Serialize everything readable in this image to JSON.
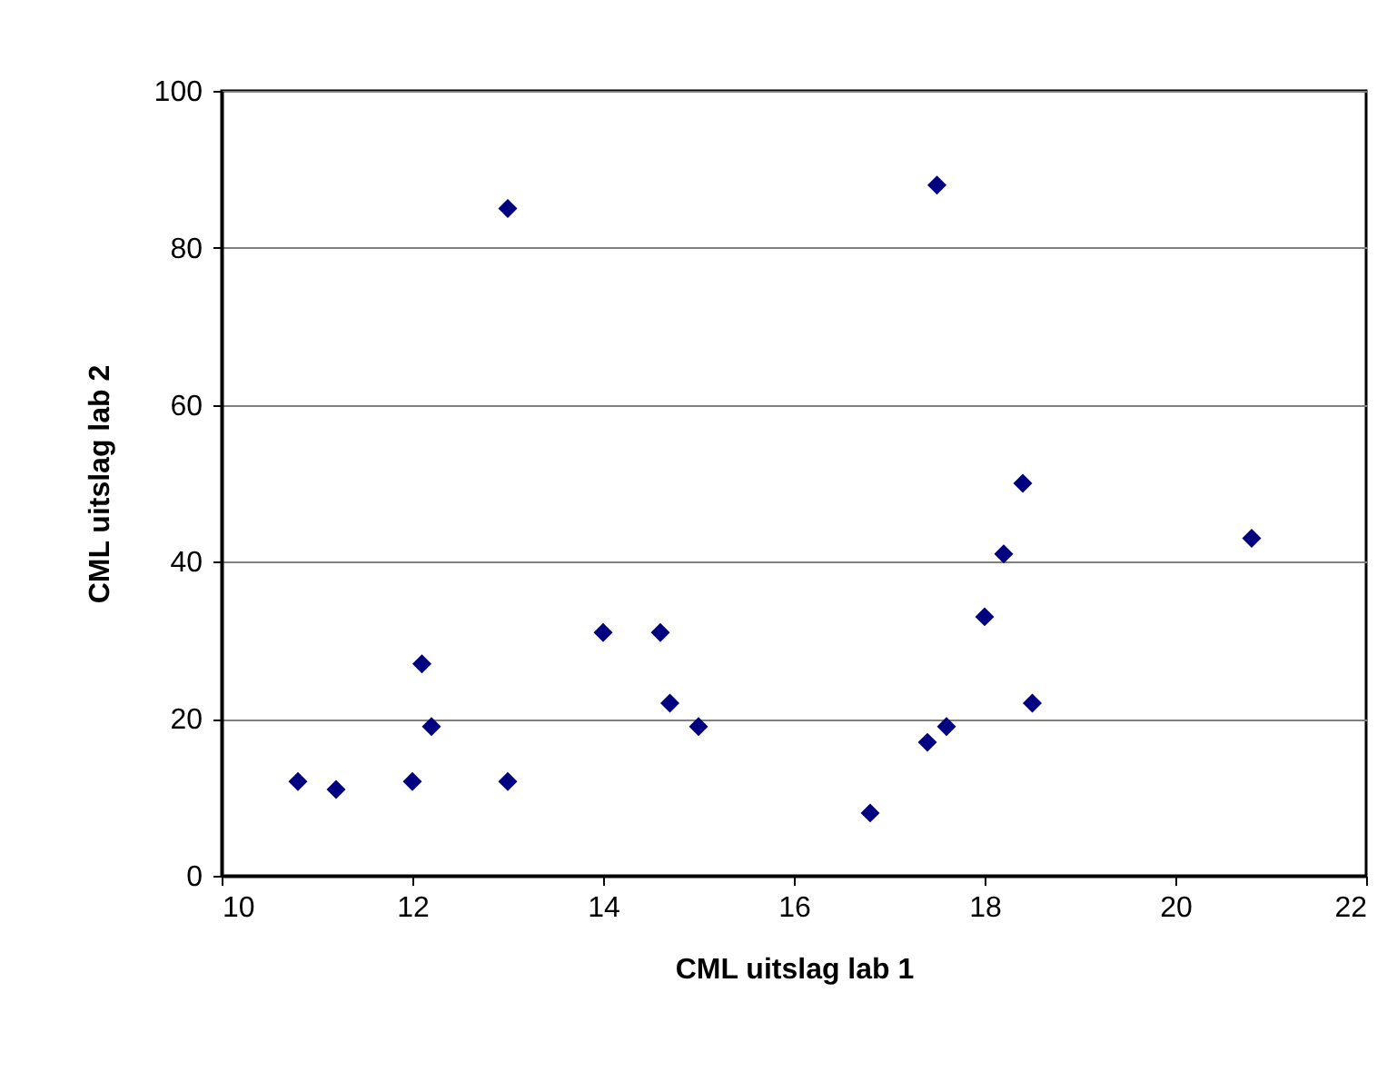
{
  "chart_data": {
    "type": "scatter",
    "xlabel": "CML uitslag lab 1",
    "ylabel": "CML uitslag lab 2",
    "x": [
      10.8,
      11.2,
      12.0,
      12.1,
      12.2,
      13.0,
      13.0,
      14.0,
      14.6,
      14.7,
      15.0,
      16.8,
      17.4,
      17.5,
      17.6,
      18.0,
      18.2,
      18.4,
      18.5,
      20.8
    ],
    "series": [
      {
        "color": "#000080",
        "values": [
          12,
          11,
          12,
          27,
          19,
          85,
          12,
          31,
          31,
          22,
          19,
          8,
          17,
          88,
          19,
          33,
          41,
          50,
          22,
          43
        ]
      }
    ],
    "xlim": [
      10,
      22
    ],
    "xticks": [
      10,
      12,
      14,
      16,
      18,
      20,
      22
    ],
    "ylim": [
      0,
      100
    ],
    "yticks": [
      0,
      20,
      40,
      60,
      80,
      100
    ],
    "grid": "y",
    "marker": "diamond"
  }
}
